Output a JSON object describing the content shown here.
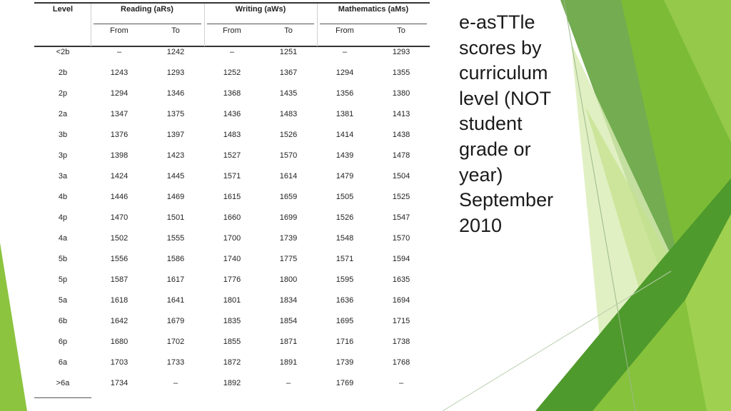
{
  "slide_title": "e-asTTle\nscores by\ncurriculum\nlevel (NOT\nstudent\ngrade or\nyear)\nSeptember\n2010",
  "table": {
    "level_header": "Level",
    "groups": [
      "Reading (aRs)",
      "Writing (aWs)",
      "Mathematics (aMs)"
    ],
    "sub_headers": [
      "From",
      "To",
      "From",
      "To",
      "From",
      "To"
    ],
    "rows": [
      [
        "<2b",
        "–",
        "1242",
        "–",
        "1251",
        "–",
        "1293"
      ],
      [
        "2b",
        "1243",
        "1293",
        "1252",
        "1367",
        "1294",
        "1355"
      ],
      [
        "2p",
        "1294",
        "1346",
        "1368",
        "1435",
        "1356",
        "1380"
      ],
      [
        "2a",
        "1347",
        "1375",
        "1436",
        "1483",
        "1381",
        "1413"
      ],
      [
        "3b",
        "1376",
        "1397",
        "1483",
        "1526",
        "1414",
        "1438"
      ],
      [
        "3p",
        "1398",
        "1423",
        "1527",
        "1570",
        "1439",
        "1478"
      ],
      [
        "3a",
        "1424",
        "1445",
        "1571",
        "1614",
        "1479",
        "1504"
      ],
      [
        "4b",
        "1446",
        "1469",
        "1615",
        "1659",
        "1505",
        "1525"
      ],
      [
        "4p",
        "1470",
        "1501",
        "1660",
        "1699",
        "1526",
        "1547"
      ],
      [
        "4a",
        "1502",
        "1555",
        "1700",
        "1739",
        "1548",
        "1570"
      ],
      [
        "5b",
        "1556",
        "1586",
        "1740",
        "1775",
        "1571",
        "1594"
      ],
      [
        "5p",
        "1587",
        "1617",
        "1776",
        "1800",
        "1595",
        "1635"
      ],
      [
        "5a",
        "1618",
        "1641",
        "1801",
        "1834",
        "1636",
        "1694"
      ],
      [
        "6b",
        "1642",
        "1679",
        "1835",
        "1854",
        "1695",
        "1715"
      ],
      [
        "6p",
        "1680",
        "1702",
        "1855",
        "1871",
        "1716",
        "1738"
      ],
      [
        "6a",
        "1703",
        "1733",
        "1872",
        "1891",
        "1739",
        "1768"
      ],
      [
        ">6a",
        "1734",
        "–",
        "1892",
        "–",
        "1769",
        "–"
      ]
    ]
  },
  "theme": {
    "green_dark": "#4e9a2a",
    "green_mid": "#7dbb35",
    "green_light": "#a9d35a",
    "green_pale": "#cfe6a0"
  }
}
